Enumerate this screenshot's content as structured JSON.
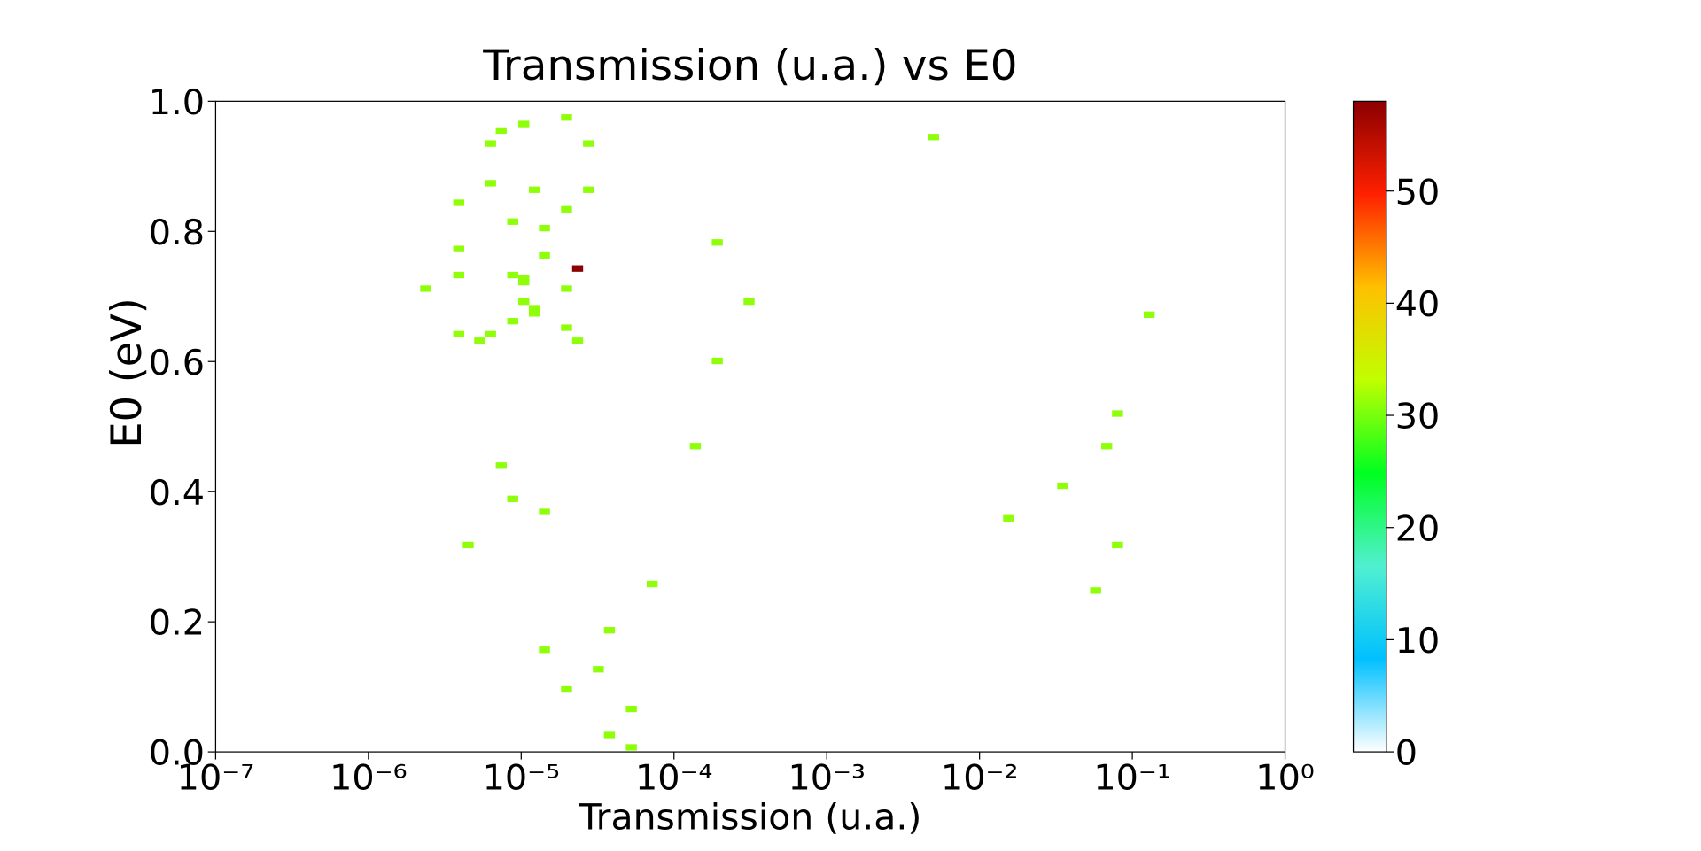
{
  "chart_data": {
    "type": "hist2d",
    "title": "Transmission (u.a.) vs E0",
    "x_label": "Transmission (u.a.)",
    "y_label": "E0 (eV)",
    "x_scale": "log",
    "xlim": [
      1e-07,
      1
    ],
    "xticks": [
      {
        "value": 1e-07,
        "label": "10⁻⁷"
      },
      {
        "value": 1e-06,
        "label": "10⁻⁶"
      },
      {
        "value": 1e-05,
        "label": "10⁻⁵"
      },
      {
        "value": 0.0001,
        "label": "10⁻⁴"
      },
      {
        "value": 0.001,
        "label": "10⁻³"
      },
      {
        "value": 0.01,
        "label": "10⁻²"
      },
      {
        "value": 0.1,
        "label": "10⁻¹"
      },
      {
        "value": 1,
        "label": "10⁰"
      }
    ],
    "ylim": [
      0,
      1
    ],
    "yticks": [
      {
        "value": 0,
        "label": "0.0"
      },
      0.2,
      0.4,
      0.6,
      0.8,
      {
        "value": 1,
        "label": "1.0"
      }
    ],
    "clim": [
      0,
      58
    ],
    "cticks": [
      0,
      10,
      20,
      30,
      40,
      50
    ],
    "colormap": [
      "#ffffff",
      "#00c0ff",
      "#50f0d0",
      "#00ff20",
      "#c0ff00",
      "#ffc000",
      "#ff2000",
      "#8b0000"
    ],
    "x": [
      1.98e-05,
      1.04e-05,
      7.4e-06,
      6.3e-06,
      2.76e-05,
      0.005,
      6.3e-06,
      1.22e-05,
      2.76e-05,
      3.9e-06,
      1.98e-05,
      8.8e-06,
      1.42e-05,
      0.000192,
      3.9e-06,
      1.42e-05,
      2.34e-05,
      3.9e-06,
      8.8e-06,
      1.04e-05,
      1.04e-05,
      2.37e-06,
      1.98e-05,
      0.00031,
      1.04e-05,
      1.22e-05,
      1.22e-05,
      0.129,
      8.8e-06,
      1.98e-05,
      3.9e-06,
      6.3e-06,
      5.35e-06,
      2.34e-05,
      0.000192,
      0.08,
      0.000138,
      0.068,
      7.4e-06,
      0.035,
      8.8e-06,
      1.42e-05,
      0.0155,
      4.5e-06,
      0.08,
      7.2e-05,
      0.0575,
      3.78e-05,
      1.42e-05,
      3.2e-05,
      1.98e-05,
      5.26e-05,
      3.78e-05,
      5.26e-05
    ],
    "y": [
      0.975,
      0.965,
      0.955,
      0.935,
      0.935,
      0.945,
      0.874,
      0.864,
      0.864,
      0.844,
      0.834,
      0.815,
      0.805,
      0.783,
      0.773,
      0.763,
      0.743,
      0.733,
      0.733,
      0.728,
      0.722,
      0.712,
      0.712,
      0.692,
      0.692,
      0.682,
      0.674,
      0.672,
      0.662,
      0.652,
      0.642,
      0.642,
      0.632,
      0.632,
      0.601,
      0.52,
      0.47,
      0.47,
      0.44,
      0.409,
      0.389,
      0.369,
      0.359,
      0.318,
      0.318,
      0.258,
      0.248,
      0.187,
      0.157,
      0.127,
      0.096,
      0.066,
      0.026,
      0.007
    ],
    "values": [
      31,
      31,
      31,
      31,
      31,
      31,
      31,
      31,
      31,
      31,
      31,
      31,
      31,
      31,
      31,
      31,
      58,
      31,
      31,
      31,
      31,
      31,
      31,
      31,
      31,
      31,
      31,
      31,
      31,
      31,
      31,
      31,
      31,
      31,
      31,
      31,
      31,
      31,
      31,
      31,
      31,
      31,
      31,
      31,
      31,
      31,
      31,
      31,
      31,
      31,
      31,
      31,
      31,
      31
    ]
  }
}
